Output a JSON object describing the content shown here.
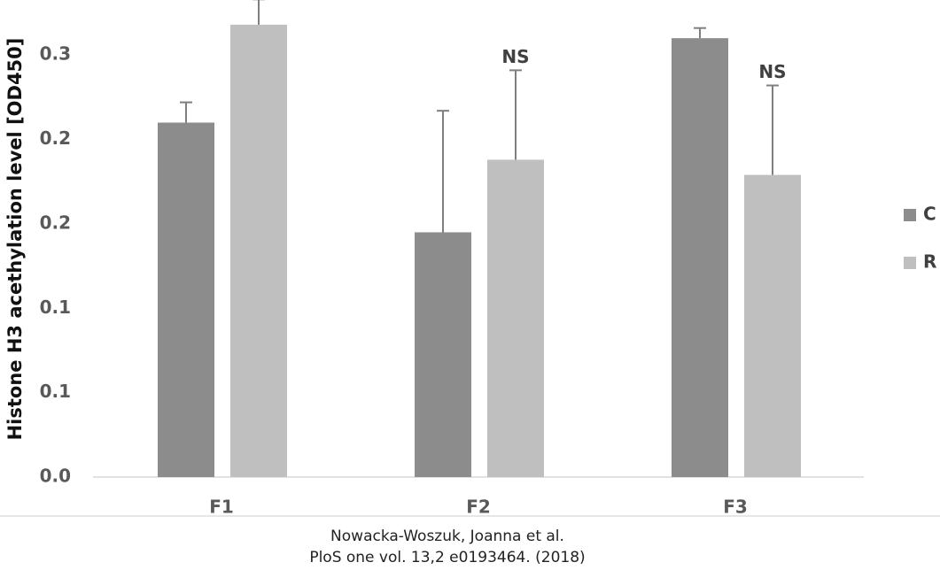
{
  "chart_data": {
    "type": "bar",
    "ylabel": "Histone H3 acethylation level [OD450]",
    "categories": [
      "F1",
      "F2",
      "F3"
    ],
    "series": [
      {
        "name": "C",
        "color": "#8c8c8c",
        "values": [
          0.21,
          0.145,
          0.26
        ],
        "errors": [
          0.012,
          0.072,
          0.006
        ]
      },
      {
        "name": "R",
        "color": "#bfbfbf",
        "values": [
          0.268,
          0.188,
          0.179
        ],
        "errors": [
          0.015,
          0.053,
          0.053
        ],
        "labels": [
          null,
          "NS",
          "NS"
        ]
      }
    ],
    "ylim": [
      0,
      0.28
    ],
    "yticks": [
      {
        "value": 0,
        "label": "0.0"
      },
      {
        "value": 0.05,
        "label": "0.1"
      },
      {
        "value": 0.1,
        "label": "0.1"
      },
      {
        "value": 0.15,
        "label": "0.2"
      },
      {
        "value": 0.2,
        "label": "0.2"
      },
      {
        "value": 0.25,
        "label": "0.3"
      }
    ],
    "grid": false,
    "legend": "right"
  },
  "caption": [
    "Nowacka-Woszuk, Joanna et al.",
    "PloS one vol. 13,2 e0193464. (2018)"
  ]
}
